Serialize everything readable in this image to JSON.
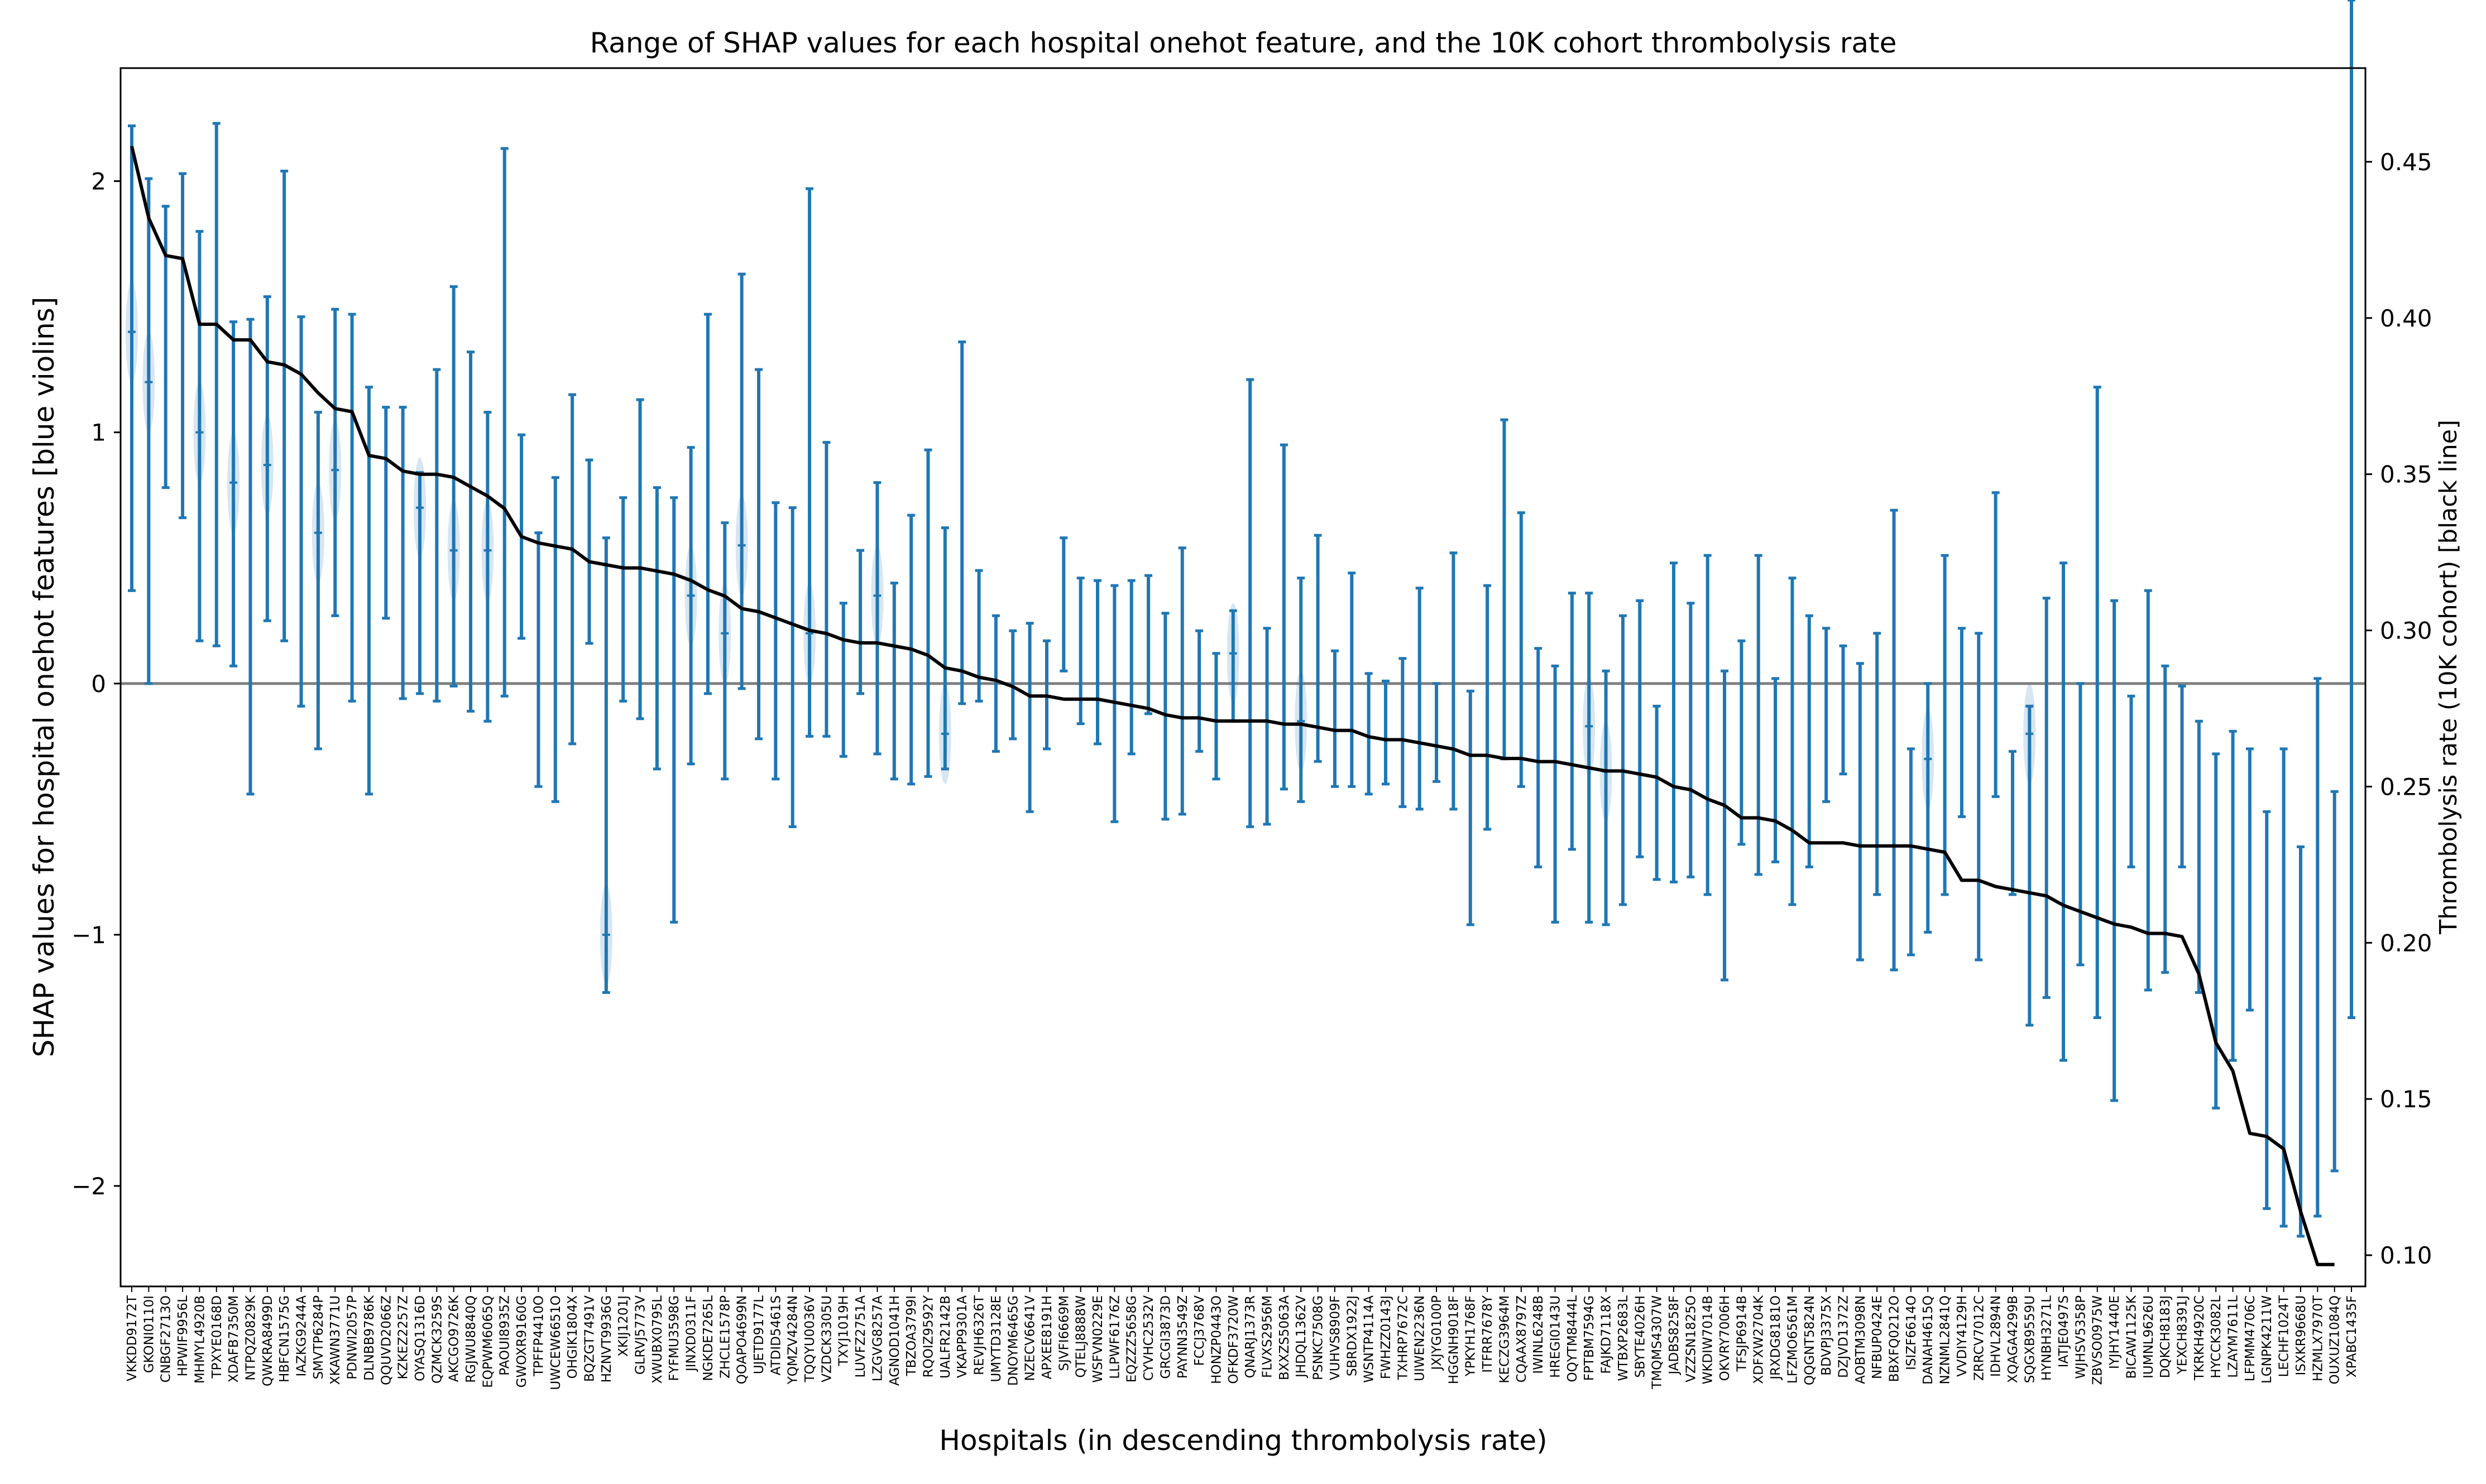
{
  "chart_data": {
    "type": "errorbar-line",
    "title": "Range of SHAP values for each hospital onehot feature, and the 10K cohort thrombolysis rate",
    "xlabel": "Hospitals (in descending thrombolysis rate)",
    "ylabel_left": "SHAP values for hospital onehot features [blue violins]",
    "ylabel_right": "Thrombolysis rate (10K cohort) [black line]",
    "left_ylim": [
      -2.4,
      2.45
    ],
    "right_ylim": [
      0.09,
      0.48
    ],
    "left_ticks": [
      "−2",
      "−1",
      "0",
      "1",
      "2"
    ],
    "left_tick_values": [
      -2,
      -1,
      0,
      1,
      2
    ],
    "right_ticks": [
      "0.10",
      "0.15",
      "0.20",
      "0.25",
      "0.30",
      "0.35",
      "0.40",
      "0.45"
    ],
    "right_tick_values": [
      0.1,
      0.15,
      0.2,
      0.25,
      0.3,
      0.35,
      0.4,
      0.45
    ],
    "zero_line": 0,
    "colors": {
      "shap": "#1f77b4",
      "rate": "#000000",
      "zero": "#808080"
    },
    "hospitals": [
      "VKKDD9172T",
      "GKONI0110I",
      "CNBGF2713O",
      "HPWIF9956L",
      "MHMYL4920B",
      "TPXYE0168D",
      "XDAFB7350M",
      "NTPQZ0829K",
      "QWKRA8499D",
      "HBFCN1575G",
      "IAZKG9244A",
      "SMVTP6284P",
      "XKAWN3771U",
      "PDNWI2057P",
      "DLNBB9786K",
      "QQUVD2066Z",
      "KZKEZ2257Z",
      "OYASQ1316D",
      "QZMCK3259S",
      "AKCGO9726K",
      "RGJWU8840Q",
      "EQPWM6065Q",
      "PAOUI8935Z",
      "GWOXR9160G",
      "TPFFP4410O",
      "UWCEW6651O",
      "OHGIK1804X",
      "BQZGT7491V",
      "HZNVT9936G",
      "XKIJ1201J",
      "GLRVJ5773V",
      "XWUBX0795L",
      "FYFMU3598G",
      "JINXD0311F",
      "NGKDE7265L",
      "ZHCLE1578P",
      "QOAPO4699N",
      "UJETD9177L",
      "ATDID5461S",
      "YQMZV4284N",
      "TQQYU0036V",
      "VZDCK3305U",
      "TXYJ1019H",
      "LUVFZ2751A",
      "LZGVG8257A",
      "AGNOD1041H",
      "TBZOA3799I",
      "RQOIZ9592Y",
      "UALFR2142B",
      "VKAPP9301A",
      "REVJH6326T",
      "UMYTD3128E",
      "DNOYM6465G",
      "NZECV6641V",
      "APXEE8191H",
      "SJVFI6669M",
      "QTELJ8888W",
      "WSFVN0229E",
      "LLPWF6176Z",
      "EQZZZ5658G",
      "CYVHC2532V",
      "GRCGI3873D",
      "PAYNN3549Z",
      "FCCJ3768V",
      "HONZP0443O",
      "OFKDF3720W",
      "QNARJ1373R",
      "FLVXS2956M",
      "BXXZS5063A",
      "JHDQL1362V",
      "PSNKC7508G",
      "VUHVS8909F",
      "SBRDX1922J",
      "WSNTP4114A",
      "FWHZZ0143J",
      "TXHRP7672C",
      "UIWEN2236N",
      "JXJYG0100P",
      "HGGNH9018F",
      "YPKYH1768F",
      "ITFRR7678Y",
      "KECZG3964M",
      "CQAAX8797Z",
      "IWINL6248B",
      "HREGI0143U",
      "OQYTM8444L",
      "FPTBM7594G",
      "FAJKD7118X",
      "WTBXP2683L",
      "SBYTE4026H",
      "TMQMS4307W",
      "JADBS8258F",
      "VZZSN1825O",
      "WKDIW7014B",
      "OKVRY7006H",
      "TFSJP6914B",
      "XDFXW2704K",
      "JRXDG8181O",
      "LFZMO6561M",
      "QQGNT5824N",
      "BDVPJ3375X",
      "DZJVD1372Z",
      "AOBTM3098N",
      "NFBUP0424E",
      "BBXFQ0212O",
      "ISIZF6614O",
      "DANAH4615Q",
      "NZNML2841Q",
      "VVDIY4129H",
      "ZRRCV7012C",
      "IDHVL2894N",
      "XQAGA4299B",
      "SQGXB9559U",
      "HYNBH3271L",
      "IATJE0497S",
      "WJHSV5358P",
      "ZBVSO0975W",
      "IYJHY1440E",
      "BICAW1125K",
      "IUMNL9626U",
      "DQKCH8183J",
      "YEXCH8391J",
      "TKRKH4920C",
      "HYCCK3082L",
      "LZAYM7611L",
      "LFPMM4706C",
      "LGNPK4211W",
      "LECHF1024T",
      "ISXKR9668U",
      "HZMLX7970T",
      "OUXUZ1084Q",
      "XPABC1435F"
    ],
    "rate": [
      0.455,
      0.432,
      0.42,
      0.419,
      0.398,
      0.398,
      0.393,
      0.393,
      0.386,
      0.385,
      0.382,
      0.376,
      0.371,
      0.37,
      0.356,
      0.355,
      0.351,
      0.35,
      0.35,
      0.349,
      0.346,
      0.343,
      0.339,
      0.33,
      0.328,
      0.327,
      0.326,
      0.322,
      0.321,
      0.32,
      0.32,
      0.319,
      0.318,
      0.316,
      0.313,
      0.311,
      0.307,
      0.306,
      0.304,
      0.302,
      0.3,
      0.299,
      0.297,
      0.296,
      0.296,
      0.295,
      0.294,
      0.292,
      0.288,
      0.287,
      0.285,
      0.284,
      0.282,
      0.279,
      0.279,
      0.278,
      0.278,
      0.278,
      0.277,
      0.276,
      0.275,
      0.273,
      0.272,
      0.272,
      0.271,
      0.271,
      0.271,
      0.271,
      0.27,
      0.27,
      0.269,
      0.268,
      0.268,
      0.266,
      0.265,
      0.265,
      0.264,
      0.263,
      0.262,
      0.26,
      0.26,
      0.259,
      0.259,
      0.258,
      0.258,
      0.257,
      0.256,
      0.255,
      0.255,
      0.254,
      0.253,
      0.25,
      0.249,
      0.246,
      0.244,
      0.24,
      0.24,
      0.239,
      0.236,
      0.232,
      0.232,
      0.232,
      0.231,
      0.231,
      0.231,
      0.231,
      0.23,
      0.229,
      0.22,
      0.22,
      0.218,
      0.217,
      0.216,
      0.215,
      0.212,
      0.21,
      0.208,
      0.206,
      0.205,
      0.203,
      0.203,
      0.202,
      0.19,
      0.168,
      0.159,
      0.139,
      0.138,
      0.134,
      0.114,
      0.097,
      0.097
    ],
    "shap_max": [
      2.22,
      2.01,
      1.9,
      2.03,
      1.8,
      2.23,
      1.44,
      1.45,
      1.54,
      2.04,
      1.46,
      1.08,
      1.49,
      1.47,
      1.18,
      1.1,
      1.1,
      0.84,
      1.25,
      1.58,
      1.32,
      1.08,
      2.13,
      0.99,
      0.6,
      0.82,
      1.15,
      0.89,
      0.58,
      0.74,
      1.13,
      0.78,
      0.74,
      0.94,
      1.47,
      0.64,
      1.63,
      1.25,
      0.72,
      0.7,
      1.97,
      0.96,
      0.32,
      0.53,
      0.8,
      0.4,
      0.67,
      0.93,
      0.62,
      1.36,
      0.45,
      0.27,
      0.21,
      0.24,
      0.17,
      0.58,
      0.42,
      0.41,
      0.39,
      0.41,
      0.43,
      0.28,
      0.54,
      0.21,
      0.12,
      0.29,
      1.21,
      0.22,
      0.95,
      0.42,
      0.59,
      0.13,
      0.44,
      0.04,
      0.01,
      0.1,
      0.38,
      0.0,
      0.52,
      -0.03,
      0.39,
      1.05,
      0.68,
      0.14,
      0.07,
      0.36,
      0.36,
      0.05,
      0.27,
      0.33,
      -0.09,
      0.48,
      0.32,
      0.51,
      0.05,
      0.17,
      0.51,
      0.02,
      0.42,
      0.27,
      0.22,
      0.15,
      0.08,
      0.2,
      0.69,
      -0.26,
      0.0,
      0.51,
      0.22,
      0.2,
      0.76,
      -0.27,
      -0.09,
      0.34,
      0.48,
      0.0,
      1.18,
      0.33,
      -0.05,
      0.37,
      0.07,
      -0.01,
      -0.15,
      -0.28,
      -0.19,
      -0.26,
      -0.51,
      -0.26,
      -0.65,
      0.02,
      -0.43
    ],
    "shap_min": [
      0.37,
      0.0,
      0.78,
      0.66,
      0.17,
      0.15,
      0.07,
      -0.44,
      0.25,
      0.17,
      -0.09,
      -0.26,
      0.27,
      -0.07,
      -0.44,
      0.26,
      -0.06,
      -0.04,
      -0.07,
      -0.01,
      -0.11,
      -0.15,
      -0.05,
      0.18,
      -0.41,
      -0.47,
      -0.24,
      0.16,
      -1.23,
      -0.07,
      -0.14,
      -0.34,
      -0.95,
      -0.32,
      -0.04,
      -0.38,
      -0.02,
      -0.22,
      -0.38,
      -0.57,
      -0.21,
      -0.21,
      -0.29,
      -0.04,
      -0.28,
      -0.38,
      -0.4,
      -0.37,
      -0.34,
      -0.08,
      -0.07,
      -0.27,
      -0.22,
      -0.51,
      -0.26,
      0.05,
      -0.16,
      -0.24,
      -0.55,
      -0.28,
      -0.12,
      -0.54,
      -0.52,
      -0.27,
      -0.38,
      -0.15,
      -0.57,
      -0.56,
      -0.42,
      -0.47,
      -0.31,
      -0.41,
      -0.41,
      -0.44,
      -0.4,
      -0.49,
      -0.5,
      -0.39,
      -0.5,
      -0.96,
      -0.58,
      -0.3,
      -0.41,
      -0.73,
      -0.95,
      -0.66,
      -0.95,
      -0.96,
      -0.88,
      -0.69,
      -0.78,
      -0.79,
      -0.77,
      -0.84,
      -1.18,
      -0.64,
      -0.76,
      -0.71,
      -0.88,
      -0.73,
      -0.47,
      -0.36,
      -1.1,
      -0.84,
      -1.14,
      -1.08,
      -0.99,
      -0.84,
      -0.53,
      -1.1,
      -0.45,
      -0.84,
      -1.36,
      -1.25,
      -1.5,
      -1.12,
      -1.33,
      -1.66,
      -0.73,
      -1.22,
      -1.15,
      -0.73,
      -1.23,
      -1.69,
      -1.5,
      -1.3,
      -2.09,
      -2.16,
      -2.2,
      -2.12,
      -1.94,
      -1.33
    ],
    "shap_center": [
      1.4,
      1.2,
      null,
      null,
      1.0,
      null,
      0.8,
      null,
      0.87,
      null,
      null,
      0.6,
      0.85,
      null,
      null,
      null,
      null,
      0.7,
      null,
      0.53,
      null,
      0.53,
      null,
      null,
      null,
      null,
      null,
      null,
      -1.0,
      null,
      null,
      null,
      null,
      0.35,
      null,
      0.2,
      0.55,
      null,
      null,
      null,
      0.2,
      null,
      null,
      null,
      0.35,
      null,
      null,
      null,
      -0.2,
      null,
      null,
      null,
      null,
      null,
      null,
      null,
      null,
      null,
      null,
      null,
      null,
      null,
      null,
      null,
      null,
      0.12,
      null,
      null,
      null,
      -0.15,
      null,
      null,
      null,
      null,
      null,
      null,
      null,
      null,
      null,
      null,
      null,
      null,
      null,
      null,
      null,
      null,
      -0.17,
      -0.35,
      null,
      null,
      null,
      null,
      null,
      null,
      null,
      null,
      null,
      null,
      null,
      null,
      null,
      null,
      null,
      null,
      null,
      null,
      -0.3,
      null,
      null,
      null,
      null,
      null,
      -0.2,
      null,
      null,
      null,
      null,
      null,
      null,
      null,
      null,
      null,
      null,
      null,
      null,
      null,
      null,
      null,
      null,
      null,
      null,
      null,
      null
    ]
  }
}
